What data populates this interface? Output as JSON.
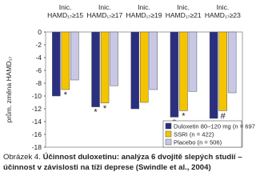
{
  "chart_data": {
    "type": "bar",
    "y_label": "prům. změna HAMD₁₇",
    "categories": [
      [
        "Inic.",
        "HAMD₁₇≥15"
      ],
      [
        "Inic.",
        "HAMD₁₇≥17"
      ],
      [
        "Inic.",
        "HAMD₁₇≥19"
      ],
      [
        "Inic.",
        "HAMD₁₇≥21"
      ],
      [
        "Inic.",
        "HAMD₁₇≥23"
      ]
    ],
    "series": [
      {
        "name": "Duloxetin 80–120 mg (n = 697)",
        "color": "#2b2f7f",
        "values": [
          -10,
          -11.7,
          -12,
          -13.3,
          -13.5
        ],
        "markers": [
          null,
          "*",
          null,
          "*",
          "*"
        ]
      },
      {
        "name": "SSRI (n = 422)",
        "color": "#f5c400",
        "values": [
          -9,
          -11.1,
          -11,
          -12.3,
          -12.3
        ],
        "markers": [
          "*",
          "*",
          null,
          "*",
          "#"
        ]
      },
      {
        "name": "Placebo (n = 506)",
        "color": "#c8c8e6",
        "values": [
          -7.5,
          -8.4,
          -9,
          -9.3,
          -9.5
        ],
        "markers": [
          null,
          null,
          null,
          null,
          null
        ]
      }
    ],
    "ylim": [
      -18,
      0
    ],
    "yticks": [
      0,
      -2,
      -4,
      -6,
      -8,
      -10,
      -12,
      -14,
      -16,
      -18
    ]
  },
  "caption": {
    "label": "Obrázek 4.",
    "text": "Účinnost duloxetinu: analýza 6 dvojitě slepých studií – účinnost v závislosti na tíži deprese (Swindle et al., 2004)"
  }
}
